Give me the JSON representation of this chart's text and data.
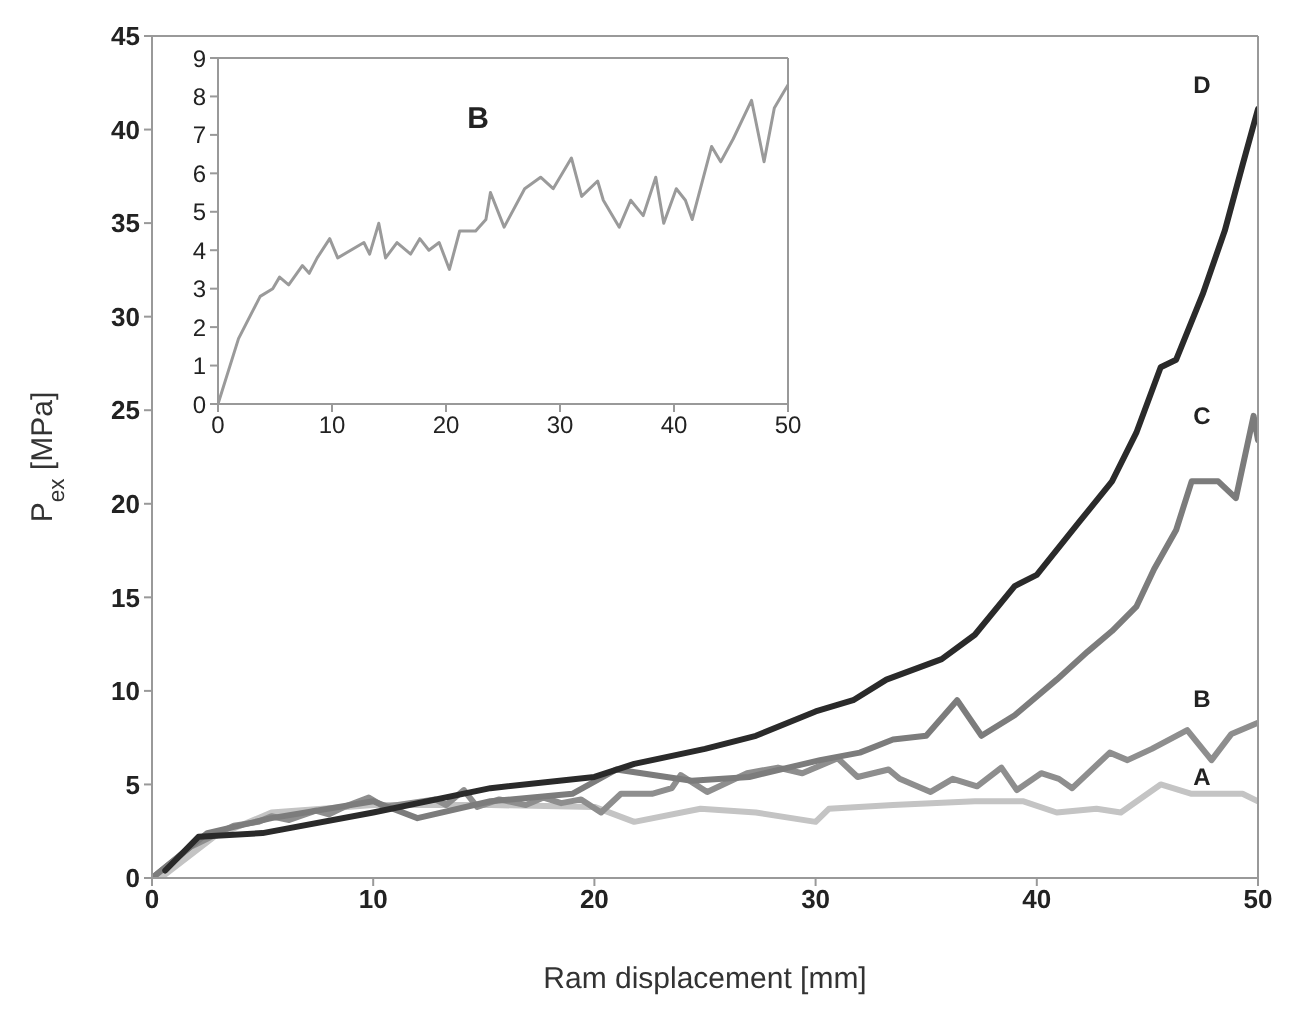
{
  "chart_data": [
    {
      "type": "line",
      "xlabel": "Ram displacement [mm]",
      "ylabel": "P$_{ex}$ [MPa]",
      "xlim": [
        0,
        50
      ],
      "xticks": [
        0,
        10,
        20,
        30,
        40,
        50
      ],
      "ylim": [
        0,
        45
      ],
      "yticks": [
        0,
        5,
        10,
        15,
        20,
        25,
        30,
        35,
        40,
        45
      ],
      "series": [
        {
          "name": "A",
          "color": "#c4c4c4",
          "x": [
            0,
            0.6,
            2.8,
            5.4,
            10,
            15.3,
            20,
            21.8,
            24.8,
            27.3,
            30,
            30.6,
            33.5,
            37.2,
            39.4,
            40.9,
            42.7,
            43.8,
            45.6,
            47,
            49.3,
            50
          ],
          "values": [
            0,
            0.2,
            2.2,
            3.5,
            3.9,
            3.9,
            3.8,
            3,
            3.7,
            3.5,
            3,
            3.7,
            3.9,
            4.1,
            4.1,
            3.5,
            3.7,
            3.5,
            5,
            4.5,
            4.5,
            4.1
          ]
        },
        {
          "name": "B",
          "color": "#8e8e8e",
          "x": [
            0,
            1.8,
            3.7,
            4.8,
            5.4,
            6.2,
            7.4,
            8,
            8.7,
            9.8,
            10.5,
            12.8,
            13.3,
            14.1,
            14.7,
            15.7,
            16.9,
            17.7,
            18.5,
            19.4,
            20.3,
            21.2,
            22.6,
            23.5,
            23.9,
            25.1,
            26.9,
            28.3,
            29.4,
            31,
            31.9,
            33.3,
            33.8,
            35.2,
            36.2,
            37.3,
            38.4,
            39.1,
            40.2,
            41,
            41.6,
            43.3,
            44.1,
            45.2,
            46.8,
            47.9,
            48.8,
            49.6,
            50
          ],
          "values": [
            0,
            1.7,
            2.8,
            3,
            3.3,
            3.1,
            3.6,
            3.4,
            3.8,
            4.3,
            3.8,
            4.2,
            3.9,
            4.7,
            3.8,
            4.2,
            3.9,
            4.3,
            4,
            4.2,
            3.5,
            4.5,
            4.5,
            4.8,
            5.5,
            4.6,
            5.6,
            5.9,
            5.6,
            6.4,
            5.4,
            5.8,
            5.3,
            4.6,
            5.3,
            4.9,
            5.9,
            4.7,
            5.6,
            5.3,
            4.8,
            6.7,
            6.3,
            6.9,
            7.9,
            6.3,
            7.7,
            8.1,
            8.3
          ]
        },
        {
          "name": "C",
          "color": "#7c7c7c",
          "x": [
            0,
            2.5,
            5.4,
            10,
            12,
            15.3,
            19,
            21,
            24.4,
            27,
            30.2,
            32,
            33.5,
            35,
            36.4,
            37.5,
            39,
            40.9,
            42.3,
            43.4,
            44.5,
            45.3,
            46.3,
            47,
            48.2,
            49,
            49.8,
            50
          ],
          "values": [
            0,
            2.4,
            3.2,
            4.1,
            3.2,
            4.1,
            4.5,
            5.8,
            5.2,
            5.4,
            6.3,
            6.7,
            7.4,
            7.6,
            9.5,
            7.6,
            8.7,
            10.6,
            12.1,
            13.2,
            14.5,
            16.5,
            18.6,
            21.2,
            21.2,
            20.3,
            24.7,
            23.4
          ]
        },
        {
          "name": "D",
          "color": "#2a2a2a",
          "x": [
            0.6,
            2.1,
            5,
            10,
            15.3,
            20,
            21.8,
            25,
            27.3,
            30,
            31.7,
            33.2,
            35.7,
            37.2,
            39,
            40,
            41.9,
            43.4,
            44.5,
            45.6,
            46.3,
            47.5,
            48.5,
            49.3,
            50
          ],
          "values": [
            0.4,
            2.2,
            2.4,
            3.5,
            4.8,
            5.4,
            6.1,
            6.9,
            7.6,
            8.9,
            9.5,
            10.6,
            11.7,
            13,
            15.6,
            16.2,
            19,
            21.2,
            23.8,
            27.3,
            27.7,
            31.2,
            34.6,
            38.1,
            41.1
          ]
        }
      ]
    },
    {
      "type": "line",
      "title": "B",
      "xlim": [
        0,
        50
      ],
      "xticks": [
        0,
        10,
        20,
        30,
        40,
        50
      ],
      "ylim": [
        0,
        9
      ],
      "yticks": [
        0,
        1,
        2,
        3,
        4,
        5,
        6,
        7,
        8,
        9
      ],
      "series": [
        {
          "color": "#9a9a9a",
          "x": [
            0,
            1.8,
            3.7,
            4.8,
            5.4,
            6.2,
            7.4,
            8,
            8.7,
            9.8,
            10.5,
            12.8,
            13.3,
            14.1,
            14.7,
            15.7,
            16.9,
            17.7,
            18.5,
            19.4,
            20.3,
            21.2,
            22.6,
            23.5,
            23.9,
            25.1,
            26.9,
            28.3,
            29.4,
            31,
            31.9,
            33.3,
            33.8,
            35.2,
            36.2,
            37.3,
            38.4,
            39.1,
            40.2,
            41,
            41.6,
            43.3,
            44.1,
            45.2,
            46.8,
            47.9,
            48.8,
            49.6,
            50
          ],
          "values": [
            0,
            1.7,
            2.8,
            3,
            3.3,
            3.1,
            3.6,
            3.4,
            3.8,
            4.3,
            3.8,
            4.2,
            3.9,
            4.7,
            3.8,
            4.2,
            3.9,
            4.3,
            4,
            4.2,
            3.5,
            4.5,
            4.5,
            4.8,
            5.5,
            4.6,
            5.6,
            5.9,
            5.6,
            6.4,
            5.4,
            5.8,
            5.3,
            4.6,
            5.3,
            4.9,
            5.9,
            4.7,
            5.6,
            5.3,
            4.8,
            6.7,
            6.3,
            6.9,
            7.9,
            6.3,
            7.7,
            8.1,
            8.3
          ]
        }
      ]
    }
  ]
}
